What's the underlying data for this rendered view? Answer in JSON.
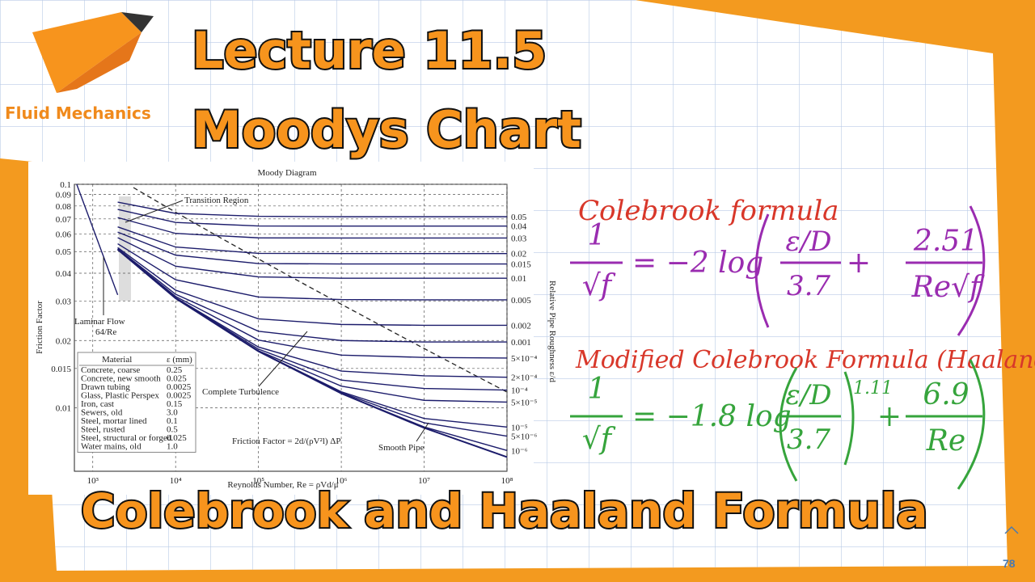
{
  "header": {
    "brand": "Fluid Mechanics",
    "title_line1": "Lecture 11.5",
    "title_line2": "Moodys Chart",
    "subtitle": "Colebrook and Haaland Formula",
    "page_number": "78"
  },
  "chart_data": {
    "type": "line",
    "title": "Moody Diagram",
    "x_label": "Reynolds Number, Re = ρVd/μ",
    "y_label": "Friction Factor",
    "y2_label": "Relative Pipe Roughness ε/d",
    "log_x": true,
    "log_y": true,
    "grid": true,
    "color": "#1c1c6b",
    "xlim": [
      600,
      100000000
    ],
    "ylim": [
      0.0052,
      0.1
    ],
    "xticks": [
      {
        "value": 1000,
        "label": "10³"
      },
      {
        "value": 10000,
        "label": "10⁴"
      },
      {
        "value": 100000,
        "label": "10⁵"
      },
      {
        "value": 1000000,
        "label": "10⁶"
      },
      {
        "value": 10000000,
        "label": "10⁷"
      },
      {
        "value": 100000000,
        "label": "10⁸"
      }
    ],
    "yticks": [
      0.1,
      0.09,
      0.08,
      0.07,
      0.06,
      0.05,
      0.04,
      0.03,
      0.02,
      0.015,
      0.01
    ],
    "x": [
      2000,
      10000,
      100000,
      1000000,
      10000000,
      100000000
    ],
    "series": [
      {
        "name": "0.05",
        "values": [
          0.0832,
          0.0741,
          0.0719,
          0.0716,
          0.0716,
          0.0716
        ]
      },
      {
        "name": "0.04",
        "values": [
          0.0772,
          0.0675,
          0.0651,
          0.065,
          0.065,
          0.065
        ]
      },
      {
        "name": "0.03",
        "values": [
          0.071,
          0.0603,
          0.0576,
          0.0575,
          0.0575,
          0.0575
        ]
      },
      {
        "name": "0.02",
        "values": [
          0.0645,
          0.0524,
          0.0491,
          0.049,
          0.049,
          0.049
        ]
      },
      {
        "name": "0.015",
        "values": [
          0.0611,
          0.0482,
          0.0442,
          0.044,
          0.044,
          0.044
        ]
      },
      {
        "name": "0.01",
        "values": [
          0.0577,
          0.043,
          0.0385,
          0.038,
          0.038,
          0.038
        ]
      },
      {
        "name": "0.005",
        "values": [
          0.0542,
          0.0374,
          0.0313,
          0.0305,
          0.0304,
          0.0304
        ]
      },
      {
        "name": "0.002",
        "values": [
          0.0521,
          0.0336,
          0.025,
          0.0236,
          0.0234,
          0.0234
        ]
      },
      {
        "name": "0.001",
        "values": [
          0.0515,
          0.0322,
          0.022,
          0.02,
          0.0197,
          0.0197
        ]
      },
      {
        "name": "5×10⁻⁴",
        "values": [
          0.0512,
          0.0315,
          0.0201,
          0.0172,
          0.0168,
          0.0167
        ]
      },
      {
        "name": "2×10⁻⁴",
        "values": [
          0.051,
          0.0311,
          0.0187,
          0.0146,
          0.0139,
          0.0137
        ]
      },
      {
        "name": "10⁻⁴",
        "values": [
          0.051,
          0.031,
          0.0183,
          0.0133,
          0.0122,
          0.012
        ]
      },
      {
        "name": "5×10⁻⁵",
        "values": [
          0.051,
          0.0309,
          0.018,
          0.0125,
          0.0108,
          0.0106
        ]
      },
      {
        "name": "10⁻⁵",
        "values": [
          0.051,
          0.0309,
          0.0179,
          0.0118,
          0.00896,
          0.0082
        ]
      },
      {
        "name": "5×10⁻⁶",
        "values": [
          0.051,
          0.0309,
          0.0179,
          0.0117,
          0.00857,
          0.00747
        ]
      },
      {
        "name": "10⁻⁶",
        "values": [
          0.051,
          0.0309,
          0.0179,
          0.0116,
          0.00821,
          0.00644
        ]
      }
    ],
    "smooth_pipe": {
      "label": "Smooth Pipe",
      "values": [
        0.0511,
        0.0309,
        0.0179,
        0.0116,
        0.00813,
        0.00602
      ]
    },
    "laminar": {
      "label": "Laminar Flow",
      "formula": "64/Re",
      "x": [
        640,
        2000
      ],
      "values": [
        0.1,
        0.032
      ]
    },
    "annotations": {
      "transition": "Transition Region",
      "turbulence": "Complete Turbulence",
      "friction_formula": "Friction Factor = 2d/(ρV²l) ΔP"
    },
    "material_table": {
      "header": [
        "Material",
        "ε (mm)"
      ],
      "rows": [
        [
          "Concrete, coarse",
          "0.25"
        ],
        [
          "Concrete, new smooth",
          "0.025"
        ],
        [
          "Drawn tubing",
          "0.0025"
        ],
        [
          "Glass, Plastic Perspex",
          "0.0025"
        ],
        [
          "Iron, cast",
          "0.15"
        ],
        [
          "Sewers, old",
          "3.0"
        ],
        [
          "Steel, mortar lined",
          "0.1"
        ],
        [
          "Steel, rusted",
          "0.5"
        ],
        [
          "Steel, structural or forged",
          "0.025"
        ],
        [
          "Water mains, old",
          "1.0"
        ]
      ]
    }
  },
  "notes": {
    "colebrook_title": "Colebrook formula",
    "colebrook": {
      "num": "1",
      "den": "√f",
      "op": "= −2 log",
      "a_num": "ε/D",
      "a_den": "3.7",
      "plus": "+",
      "b_num": "2.51",
      "b_den": "Re√f"
    },
    "haaland_title": "Modified Colebrook Formula (Haaland formula)",
    "haaland": {
      "num": "1",
      "den": "√f",
      "op": "= −1.8 log",
      "a_num": "ε/D",
      "a_den": "3.7",
      "exp": "1.11",
      "plus": "+",
      "b_num": "6.9",
      "b_den": "Re"
    }
  }
}
